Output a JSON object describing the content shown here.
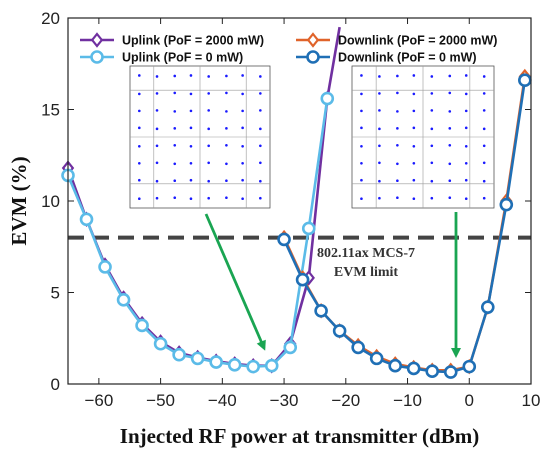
{
  "chart_data": {
    "type": "line",
    "title": "",
    "xlabel": "Injected RF power at transmitter (dBm)",
    "ylabel": "EVM (%)",
    "xlim": [
      -65,
      10
    ],
    "ylim": [
      0,
      20
    ],
    "xticks": [
      -60,
      -50,
      -40,
      -30,
      -20,
      -10,
      0,
      10
    ],
    "yticks": [
      0,
      5,
      10,
      15,
      20
    ],
    "grid": false,
    "legend_position": "top",
    "threshold": {
      "value": 8,
      "label_line1": "802.11ax MCS-7",
      "label_line2": "EVM limit"
    },
    "series": [
      {
        "name": "Uplink (PoF = 2000 mW)",
        "color": "#7030a0",
        "marker": "diamond",
        "x": [
          -65,
          -62,
          -59,
          -56,
          -53,
          -50,
          -47,
          -44,
          -41,
          -38,
          -35,
          -32,
          -29,
          -26,
          -23,
          -21
        ],
        "y": [
          11.8,
          9.0,
          6.5,
          4.7,
          3.3,
          2.3,
          1.7,
          1.45,
          1.25,
          1.1,
          1.0,
          1.0,
          2.2,
          5.8,
          15.6,
          19.5
        ]
      },
      {
        "name": "Uplink (PoF = 0 mW)",
        "color": "#5bbbe8",
        "marker": "circle",
        "x": [
          -65,
          -62,
          -59,
          -56,
          -53,
          -50,
          -47,
          -44,
          -41,
          -38,
          -35,
          -32,
          -29,
          -26,
          -23
        ],
        "y": [
          11.4,
          9.0,
          6.4,
          4.6,
          3.2,
          2.2,
          1.6,
          1.4,
          1.2,
          1.05,
          0.95,
          1.0,
          2.0,
          8.5,
          15.6
        ]
      },
      {
        "name": "Downlink (PoF = 2000 mW)",
        "color": "#e0632a",
        "marker": "diamond",
        "x": [
          -30,
          -27,
          -24,
          -21,
          -18,
          -15,
          -12,
          -9,
          -6,
          -3,
          0,
          3,
          6,
          9
        ],
        "y": [
          8.0,
          5.8,
          4.0,
          2.9,
          2.1,
          1.5,
          1.1,
          0.9,
          0.75,
          0.75,
          0.95,
          4.2,
          10.0,
          16.8
        ]
      },
      {
        "name": "Downlink (PoF = 0 mW)",
        "color": "#1f6fb5",
        "marker": "circle",
        "x": [
          -30,
          -27,
          -24,
          -21,
          -18,
          -15,
          -12,
          -9,
          -6,
          -3,
          0,
          3,
          6,
          9
        ],
        "y": [
          7.9,
          5.7,
          4.0,
          2.9,
          2.0,
          1.4,
          1.0,
          0.85,
          0.7,
          0.65,
          0.95,
          4.2,
          9.8,
          16.6
        ]
      }
    ]
  }
}
